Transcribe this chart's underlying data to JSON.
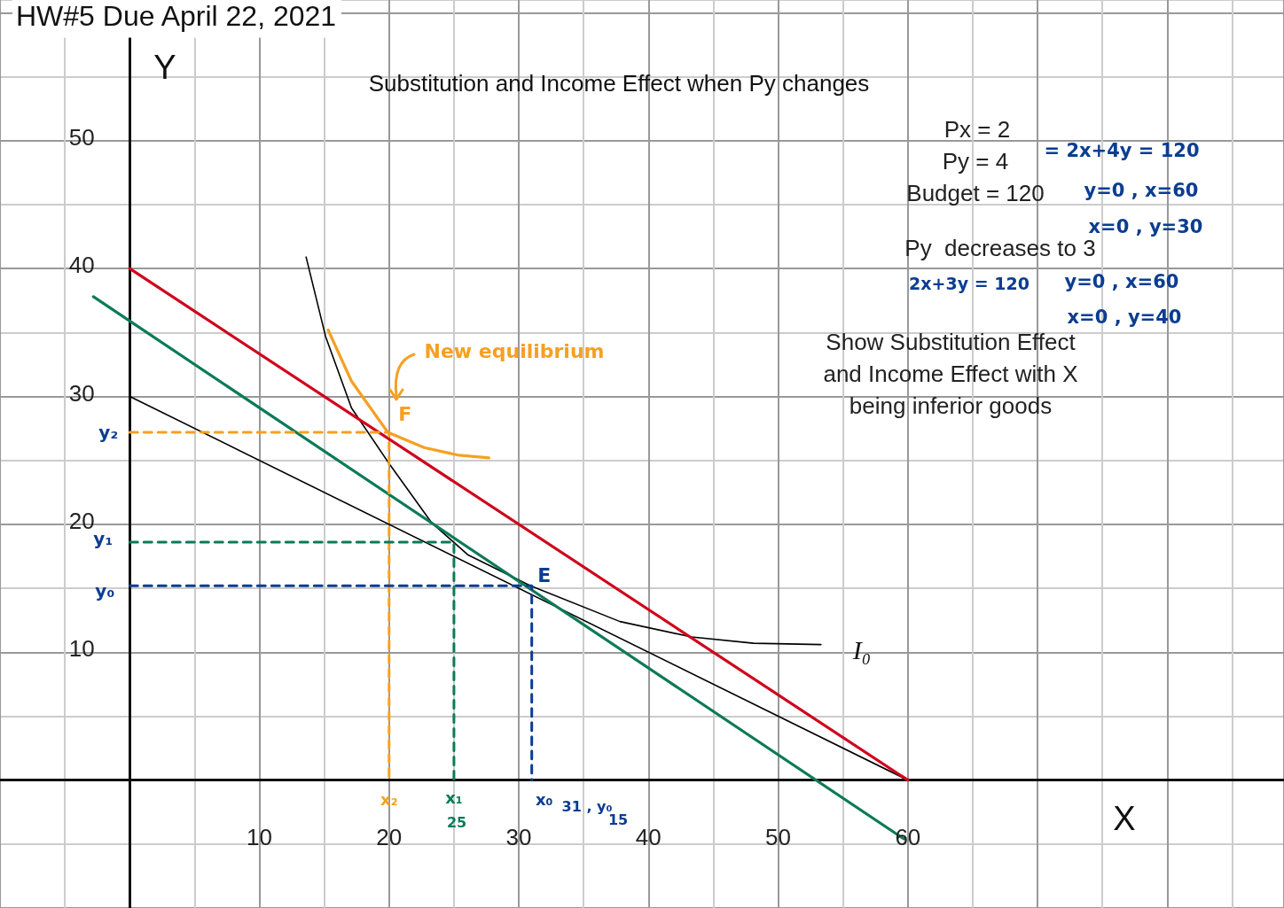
{
  "chart_data": {
    "type": "line",
    "title": "HW#5 Due April 22, 2021",
    "subtitle": "Substitution and Income Effect when Py changes",
    "xlabel": "X",
    "ylabel": "Y",
    "xlim": [
      -10,
      89
    ],
    "ylim": [
      -10,
      61
    ],
    "xticks": [
      {
        "value": -10,
        "label": null
      },
      {
        "value": -5,
        "label": null
      },
      {
        "value": 0,
        "label": null
      },
      {
        "value": 5,
        "label": null
      },
      10,
      {
        "value": 15,
        "label": null
      },
      20,
      {
        "value": 25,
        "label": null
      },
      30,
      {
        "value": 35,
        "label": null
      },
      40,
      {
        "value": 45,
        "label": null
      },
      50,
      {
        "value": 55,
        "label": null
      },
      60,
      {
        "value": 65,
        "label": null
      },
      {
        "value": 70,
        "label": null
      },
      {
        "value": 75,
        "label": null
      },
      {
        "value": 80,
        "label": null
      },
      {
        "value": 85,
        "label": null
      }
    ],
    "yticks": [
      {
        "value": -10,
        "label": null
      },
      {
        "value": -5,
        "label": null
      },
      {
        "value": 0,
        "label": null
      },
      {
        "value": 5,
        "label": null
      },
      10,
      {
        "value": 15,
        "label": null
      },
      20,
      {
        "value": 25,
        "label": null
      },
      30,
      {
        "value": 35,
        "label": null
      },
      40,
      {
        "value": 45,
        "label": null
      },
      50,
      {
        "value": 55,
        "label": null
      },
      {
        "value": 60,
        "label": null
      }
    ],
    "grid": true,
    "marker": "none",
    "line_style": "solid",
    "series": [
      {
        "color": "#000000",
        "x": [
          0,
          60
        ],
        "values": [
          30,
          0
        ]
      },
      {
        "color": "#000000",
        "x": [
          13.6,
          15.1,
          17.1,
          19.9,
          23.3,
          26.1,
          30.9,
          37.8,
          43.3,
          48.1,
          53.3
        ],
        "values": [
          40.9,
          34.7,
          29.1,
          24.9,
          20.1,
          17.6,
          15.2,
          12.4,
          11.2,
          10.7,
          10.6
        ]
      },
      {
        "color": "#d0021b",
        "x": [
          0,
          60
        ],
        "values": [
          40,
          0
        ]
      },
      {
        "color": "#0b7a58",
        "x": [
          -2.8,
          59.7
        ],
        "values": [
          37.8,
          -4.6
        ]
      },
      {
        "color": "#f5a023",
        "x": [
          15.3,
          17.1,
          19.9,
          22.7,
          25.4,
          27.7
        ],
        "values": [
          35.2,
          31.2,
          27.2,
          26,
          25.4,
          25.2
        ]
      },
      {
        "color": "#f5a023",
        "line_style": "dashed",
        "x": [
          0,
          20,
          20
        ],
        "values": [
          27.2,
          27.2,
          0
        ]
      },
      {
        "color": "#0b7a58",
        "line_style": "dashed",
        "x": [
          0,
          25,
          25
        ],
        "values": [
          18.6,
          18.6,
          0
        ]
      },
      {
        "color": "#0b3d91",
        "line_style": "dashed",
        "x": [
          0,
          31,
          31
        ],
        "values": [
          15.2,
          15.2,
          0
        ]
      }
    ],
    "annotations": [
      "Px = 2",
      "Py = 4",
      "Budget = 120",
      "Py  decreases to 3",
      "Show Substitution Effect\nand Income Effect with X\nbeing inferior goods",
      "= 2x+4y = 120",
      "y=0 , x=60",
      "x=0 , y=30",
      "2x+3y = 120",
      "y=0 , x=60",
      "x=0 , y=40",
      "New equilibrium",
      "25",
      "31 , y₀",
      "15",
      {
        "text": "F",
        "x": 20,
        "y": 27.2
      },
      {
        "text": "E",
        "x": 31,
        "y": 15.2
      },
      {
        "text": "y₂",
        "x": 0,
        "y": 27.2
      },
      {
        "text": "y₁",
        "x": 0,
        "y": 18.6
      },
      {
        "text": "y₀",
        "x": 0,
        "y": 15.2
      },
      {
        "text": "x₂",
        "x": 20,
        "y": 0
      },
      {
        "text": "x₁",
        "x": 25,
        "y": 0
      },
      {
        "text": "x₀",
        "x": 31,
        "y": 0
      },
      "I₀"
    ]
  }
}
